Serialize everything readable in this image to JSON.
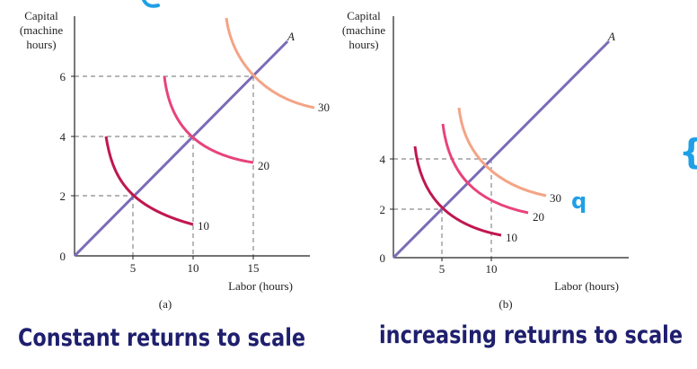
{
  "colors": {
    "ray": "#7b6bb8",
    "q10": "#c0174f",
    "q20": "#e8437a",
    "q30": "#f4a486",
    "guide": "#8a8a8a",
    "axis": "#231f20",
    "handwriting": "#1f1f6e",
    "highlighter": "#1fa0e6"
  },
  "panels": [
    {
      "id": "a",
      "ylabel": [
        "Capital",
        "(machine",
        "hours)"
      ],
      "xlabel": "Labor (hours)",
      "caption": "(a)",
      "yticks": [
        "6",
        "4",
        "2",
        "0"
      ],
      "xticks": [
        "5",
        "10",
        "15"
      ],
      "ray_label": "A",
      "isoquant_labels": [
        "10",
        "20",
        "30"
      ],
      "handwritten": "Constant returns to scale"
    },
    {
      "id": "b",
      "ylabel": [
        "Capital",
        "(machine",
        "hours)"
      ],
      "xlabel": "Labor (hours)",
      "caption": "(b)",
      "yticks": [
        "4",
        "2",
        "0"
      ],
      "xticks": [
        "5",
        "10"
      ],
      "ray_label": "A",
      "isoquant_labels": [
        "10",
        "20",
        "30"
      ],
      "handwritten": "increasing returns to scale",
      "annotation": "q"
    }
  ],
  "side_mark": "{"
}
